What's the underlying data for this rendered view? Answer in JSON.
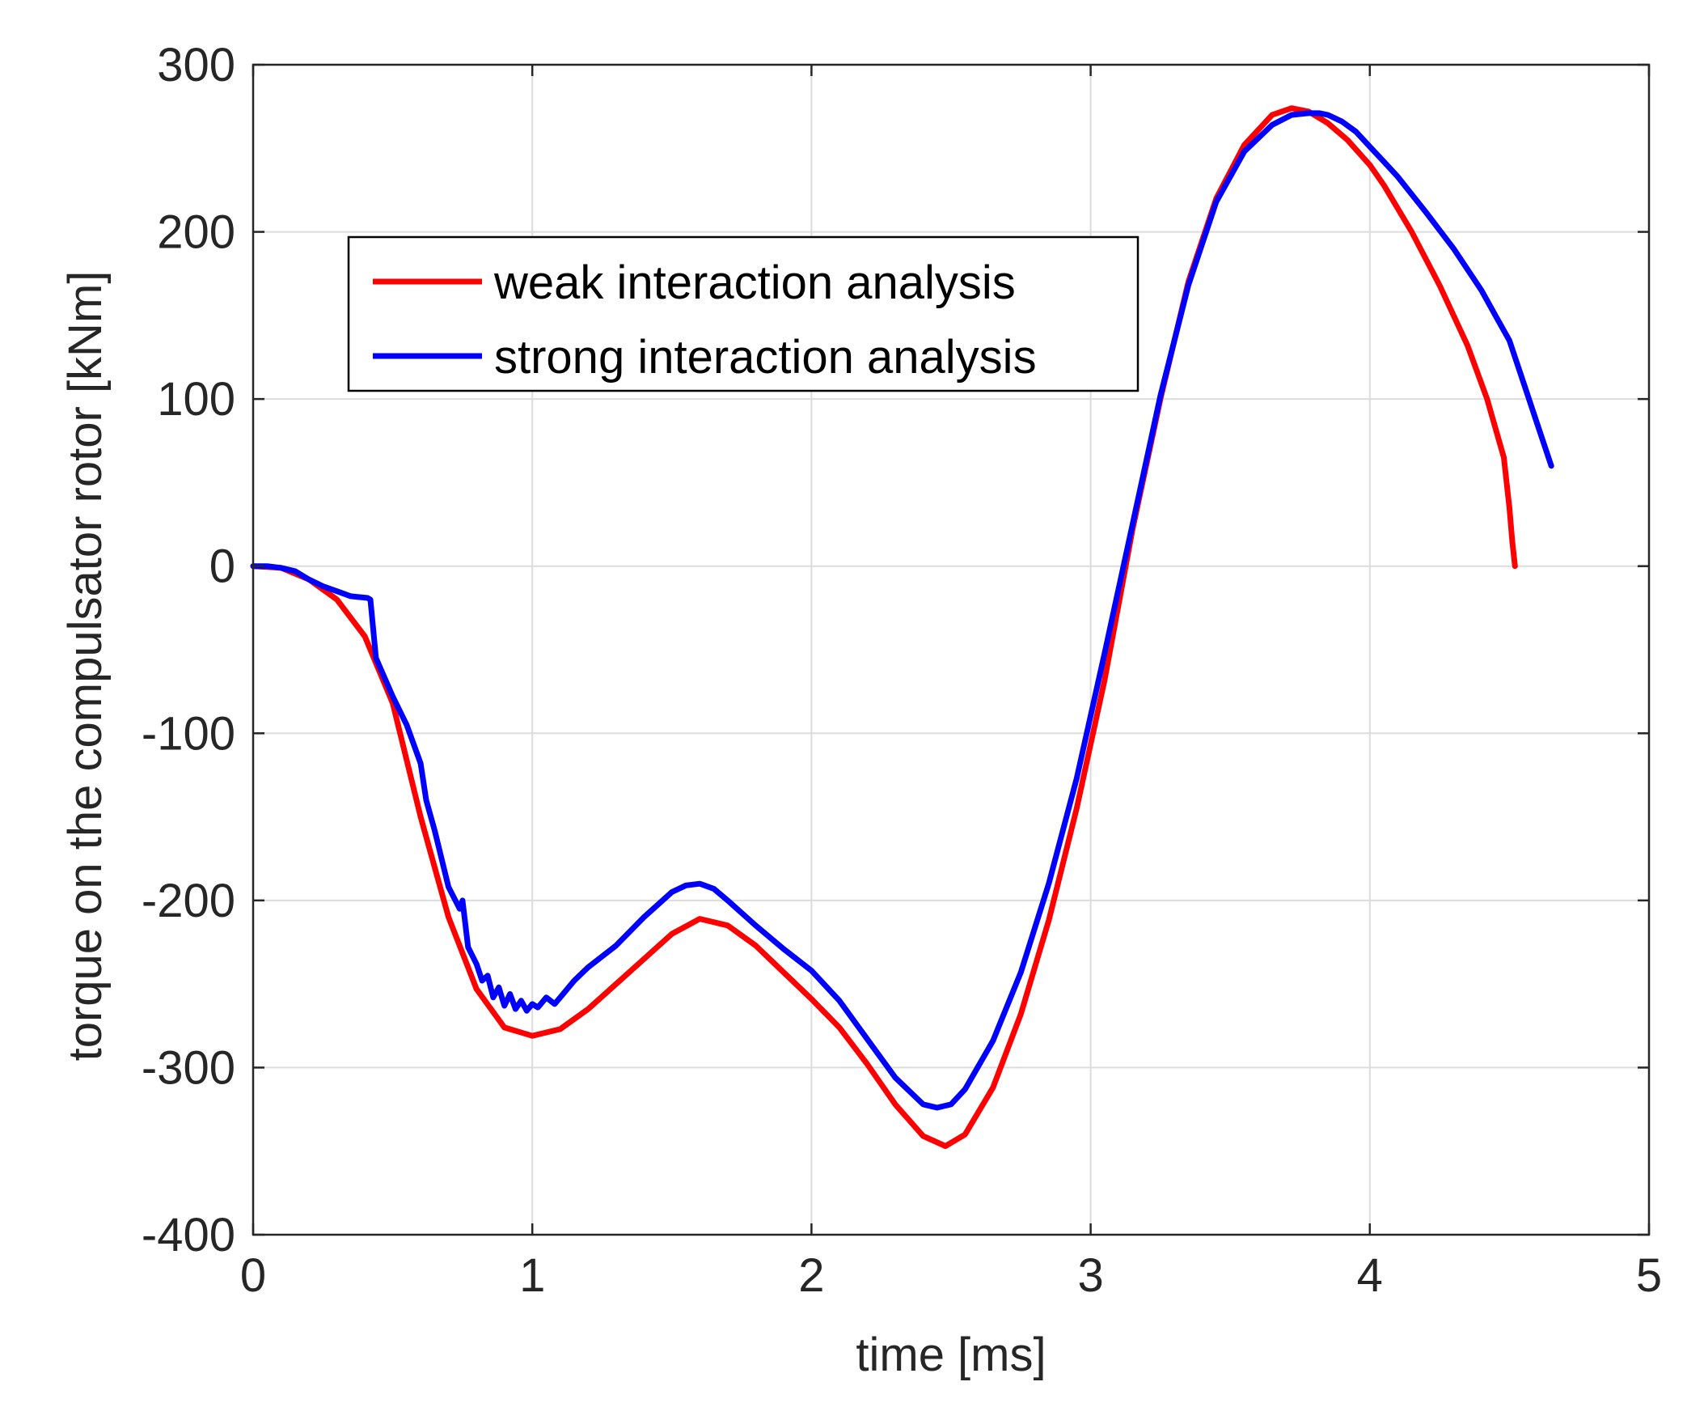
{
  "chart_data": {
    "type": "line",
    "title": "",
    "xlabel": "time [ms]",
    "ylabel": "torque on the compulsator rotor [kNm]",
    "xlim": [
      0,
      5
    ],
    "ylim": [
      -400,
      300
    ],
    "xticks": [
      0,
      1,
      2,
      3,
      4,
      5
    ],
    "xtick_labels": [
      "0",
      "1",
      "2",
      "3",
      "4",
      "5"
    ],
    "yticks": [
      -400,
      -300,
      -200,
      -100,
      0,
      100,
      200,
      300
    ],
    "ytick_labels": [
      "-400",
      "-300",
      "-200",
      "-100",
      "0",
      "100",
      "200",
      "300"
    ],
    "grid": true,
    "legend": {
      "placement": "top-left"
    },
    "series": [
      {
        "name": "weak interaction analysis",
        "color": "#ff0000",
        "x": [
          0,
          0.1,
          0.2,
          0.3,
          0.4,
          0.5,
          0.6,
          0.7,
          0.8,
          0.9,
          1.0,
          1.1,
          1.2,
          1.3,
          1.4,
          1.5,
          1.6,
          1.7,
          1.8,
          1.9,
          2.0,
          2.1,
          2.2,
          2.3,
          2.4,
          2.48,
          2.55,
          2.65,
          2.75,
          2.85,
          2.95,
          3.05,
          3.15,
          3.25,
          3.35,
          3.45,
          3.55,
          3.65,
          3.72,
          3.78,
          3.85,
          3.92,
          4.0,
          4.05,
          4.15,
          4.25,
          4.35,
          4.42,
          4.48,
          4.5,
          4.51,
          4.52
        ],
        "y": [
          0,
          -1,
          -8,
          -20,
          -42,
          -82,
          -150,
          -210,
          -253,
          -276,
          -281,
          -277,
          -265,
          -250,
          -235,
          -220,
          -211,
          -215,
          -227,
          -243,
          -259,
          -276,
          -298,
          -322,
          -341,
          -347,
          -340,
          -312,
          -268,
          -212,
          -145,
          -68,
          22,
          100,
          170,
          220,
          252,
          270,
          274,
          272,
          265,
          255,
          240,
          228,
          200,
          168,
          132,
          100,
          65,
          35,
          15,
          0
        ]
      },
      {
        "name": "strong interaction analysis",
        "color": "#0000ff",
        "x": [
          0,
          0.05,
          0.1,
          0.15,
          0.2,
          0.25,
          0.3,
          0.35,
          0.41,
          0.42,
          0.44,
          0.5,
          0.55,
          0.6,
          0.62,
          0.65,
          0.7,
          0.74,
          0.75,
          0.77,
          0.8,
          0.82,
          0.84,
          0.86,
          0.88,
          0.9,
          0.92,
          0.94,
          0.96,
          0.98,
          1.0,
          1.02,
          1.05,
          1.08,
          1.1,
          1.15,
          1.2,
          1.3,
          1.4,
          1.5,
          1.55,
          1.6,
          1.65,
          1.7,
          1.8,
          1.9,
          2.0,
          2.1,
          2.2,
          2.3,
          2.4,
          2.45,
          2.5,
          2.55,
          2.65,
          2.75,
          2.85,
          2.95,
          3.05,
          3.15,
          3.25,
          3.35,
          3.45,
          3.55,
          3.65,
          3.72,
          3.78,
          3.82,
          3.85,
          3.9,
          3.95,
          4.0,
          4.05,
          4.1,
          4.2,
          4.3,
          4.4,
          4.45,
          4.5,
          4.55,
          4.6,
          4.65
        ],
        "y": [
          0,
          0,
          -1,
          -3,
          -8,
          -12,
          -15,
          -18,
          -19,
          -20,
          -55,
          -78,
          -95,
          -118,
          -140,
          -158,
          -192,
          -205,
          -200,
          -228,
          -238,
          -248,
          -245,
          -258,
          -252,
          -263,
          -256,
          -265,
          -260,
          -266,
          -262,
          -264,
          -258,
          -262,
          -258,
          -248,
          -240,
          -227,
          -210,
          -195,
          -191,
          -190,
          -193,
          -200,
          -215,
          -229,
          -242,
          -260,
          -283,
          -306,
          -322,
          -324,
          -322,
          -313,
          -284,
          -243,
          -190,
          -127,
          -52,
          25,
          102,
          168,
          218,
          248,
          264,
          270,
          271,
          271,
          270,
          266,
          260,
          251,
          242,
          233,
          212,
          190,
          165,
          150,
          135,
          110,
          85,
          60
        ]
      }
    ]
  }
}
